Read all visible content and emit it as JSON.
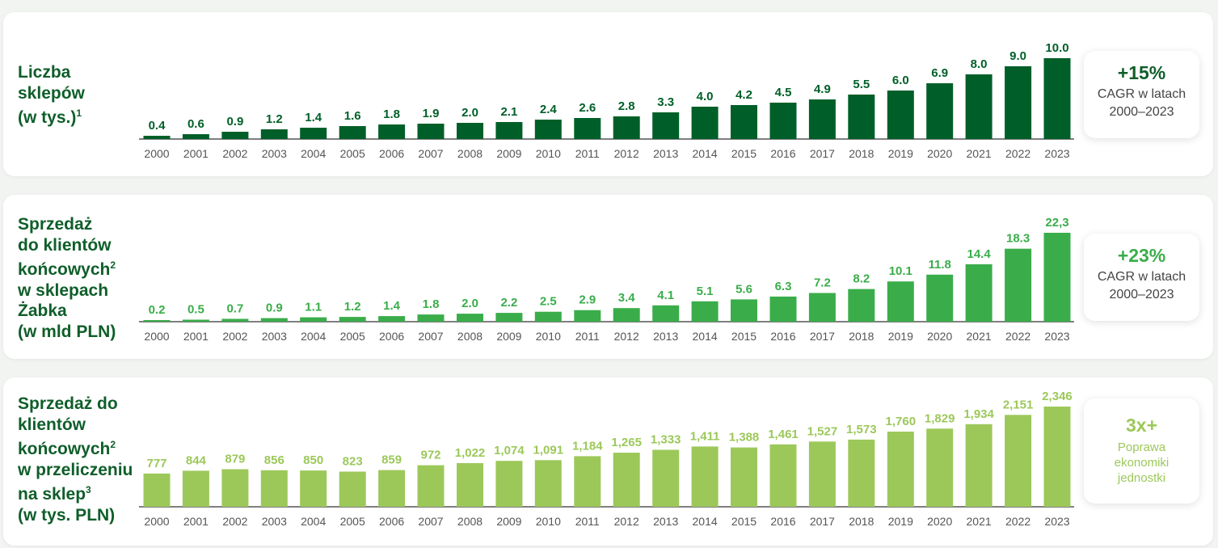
{
  "colors": {
    "stores": "#005f28",
    "sales": "#3aad4a",
    "per_store": "#9cc85a"
  },
  "panels": [
    {
      "key": "stores",
      "title_lines": [
        "Liczba",
        "sklepów",
        "(w tys.)"
      ],
      "title_sup": "1",
      "kpi": {
        "value": "+15%",
        "sub_lines": [
          "CAGR w latach",
          "2000–2023"
        ]
      }
    },
    {
      "key": "sales",
      "title_lines": [
        "Sprzedaż",
        "do klientów",
        "końcowych",
        "w sklepach",
        "Żabka",
        "(w mld PLN)"
      ],
      "title_sup": "2",
      "kpi": {
        "value": "+23%",
        "sub_lines": [
          "CAGR w latach",
          "2000–2023"
        ]
      }
    },
    {
      "key": "per_store",
      "title_lines": [
        "Sprzedaż do",
        "klientów",
        "końcowych",
        "w przeliczeniu",
        "na sklep",
        "(w tys. PLN)"
      ],
      "title_sup": "3",
      "title_sup2": "2",
      "kpi": {
        "value": "3x+",
        "sub_lines": [
          "Poprawa",
          "ekonomiki",
          "jednostki"
        ]
      }
    }
  ],
  "chart_data": [
    {
      "type": "bar",
      "categories": [
        "2000",
        "2001",
        "2002",
        "2003",
        "2004",
        "2005",
        "2006",
        "2007",
        "2008",
        "2009",
        "2010",
        "2011",
        "2012",
        "2013",
        "2014",
        "2015",
        "2016",
        "2017",
        "2018",
        "2019",
        "2020",
        "2021",
        "2022",
        "2023"
      ],
      "values": [
        0.4,
        0.6,
        0.9,
        1.2,
        1.4,
        1.6,
        1.8,
        1.9,
        2.0,
        2.1,
        2.4,
        2.6,
        2.8,
        3.3,
        4.0,
        4.2,
        4.5,
        4.9,
        5.5,
        6.0,
        6.9,
        8.0,
        9.0,
        10.0
      ],
      "labels": [
        "0.4",
        "0.6",
        "0.9",
        "1.2",
        "1.4",
        "1.6",
        "1.8",
        "1.9",
        "2.0",
        "2.1",
        "2.4",
        "2.6",
        "2.8",
        "3.3",
        "4.0",
        "4.2",
        "4.5",
        "4.9",
        "5.5",
        "6.0",
        "6.9",
        "8.0",
        "9.0",
        "10.0"
      ],
      "ylim": [
        0,
        10
      ],
      "grid": false
    },
    {
      "type": "bar",
      "categories": [
        "2000",
        "2001",
        "2002",
        "2003",
        "2004",
        "2005",
        "2006",
        "2007",
        "2008",
        "2009",
        "2010",
        "2011",
        "2012",
        "2013",
        "2014",
        "2015",
        "2016",
        "2017",
        "2018",
        "2019",
        "2020",
        "2021",
        "2022",
        "2023"
      ],
      "values": [
        0.2,
        0.5,
        0.7,
        0.9,
        1.1,
        1.2,
        1.4,
        1.8,
        2.0,
        2.2,
        2.5,
        2.9,
        3.4,
        4.1,
        5.1,
        5.6,
        6.3,
        7.2,
        8.2,
        10.1,
        11.8,
        14.4,
        18.3,
        22.3
      ],
      "labels": [
        "0.2",
        "0.5",
        "0.7",
        "0.9",
        "1.1",
        "1.2",
        "1.4",
        "1.8",
        "2.0",
        "2.2",
        "2.5",
        "2.9",
        "3.4",
        "4.1",
        "5.1",
        "5.6",
        "6.3",
        "7.2",
        "8.2",
        "10.1",
        "11.8",
        "14.4",
        "18.3",
        "22,3"
      ],
      "ylim": [
        0,
        22.3
      ],
      "grid": false
    },
    {
      "type": "bar",
      "categories": [
        "2000",
        "2001",
        "2002",
        "2003",
        "2004",
        "2005",
        "2006",
        "2007",
        "2008",
        "2009",
        "2010",
        "2011",
        "2012",
        "2013",
        "2014",
        "2015",
        "2016",
        "2017",
        "2018",
        "2019",
        "2020",
        "2021",
        "2022",
        "2023"
      ],
      "values": [
        777,
        844,
        879,
        856,
        850,
        823,
        859,
        972,
        1022,
        1074,
        1091,
        1184,
        1265,
        1333,
        1411,
        1388,
        1461,
        1527,
        1573,
        1760,
        1829,
        1934,
        2151,
        2346
      ],
      "labels": [
        "777",
        "844",
        "879",
        "856",
        "850",
        "823",
        "859",
        "972",
        "1,022",
        "1,074",
        "1,091",
        "1,184",
        "1,265",
        "1,333",
        "1,411",
        "1,388",
        "1,461",
        "1,527",
        "1,573",
        "1,760",
        "1,829",
        "1,934",
        "2,151",
        "2,346"
      ],
      "ylim": [
        0,
        2346
      ],
      "grid": false
    }
  ]
}
